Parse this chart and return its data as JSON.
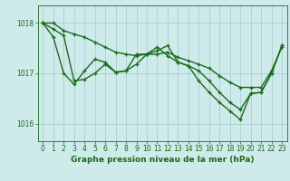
{
  "title": "Graphe pression niveau de la mer (hPa)",
  "background_color": "#ceeaea",
  "grid_color": "#aacfcf",
  "line_color": "#1a6b1a",
  "xlim": [
    -0.5,
    23.5
  ],
  "ylim": [
    1015.65,
    1018.35
  ],
  "yticks": [
    1016,
    1017,
    1018
  ],
  "xticks": [
    0,
    1,
    2,
    3,
    4,
    5,
    6,
    7,
    8,
    9,
    10,
    11,
    12,
    13,
    14,
    15,
    16,
    17,
    18,
    19,
    20,
    21,
    22,
    23
  ],
  "line1_x": [
    0,
    1,
    2,
    3,
    4,
    5,
    6,
    7,
    8,
    9,
    10,
    11,
    12,
    13,
    14,
    15,
    16,
    17,
    18,
    19,
    20,
    21,
    22,
    23
  ],
  "line1_y": [
    1018.0,
    1018.0,
    1017.85,
    1017.78,
    1017.72,
    1017.62,
    1017.52,
    1017.42,
    1017.38,
    1017.35,
    1017.38,
    1017.38,
    1017.42,
    1017.32,
    1017.25,
    1017.18,
    1017.1,
    1016.95,
    1016.82,
    1016.72,
    1016.72,
    1016.72,
    1017.05,
    1017.52
  ],
  "line2_x": [
    0,
    1,
    2,
    3,
    4,
    5,
    6,
    7,
    8,
    9,
    10,
    11,
    12,
    13,
    14,
    15,
    16,
    17,
    18,
    19,
    20,
    21,
    22,
    23
  ],
  "line2_y": [
    1018.0,
    1017.88,
    1017.75,
    1016.85,
    1016.88,
    1017.0,
    1017.18,
    1017.02,
    1017.05,
    1017.38,
    1017.38,
    1017.45,
    1017.55,
    1017.22,
    1017.15,
    1017.05,
    1016.85,
    1016.62,
    1016.42,
    1016.28,
    1016.6,
    1016.62,
    1017.0,
    1017.55
  ],
  "line3_x": [
    0,
    1,
    2,
    3,
    4,
    5,
    6,
    7,
    8,
    9,
    10,
    11,
    12,
    13,
    14,
    15,
    16,
    17,
    18,
    19,
    20,
    21,
    22,
    23
  ],
  "line3_y": [
    1018.0,
    1017.72,
    1017.0,
    1016.78,
    1017.05,
    1017.28,
    1017.22,
    1017.02,
    1017.05,
    1017.18,
    1017.38,
    1017.52,
    1017.35,
    1017.22,
    1017.15,
    1016.85,
    1016.62,
    1016.42,
    1016.25,
    1016.08,
    1016.6,
    1016.62,
    1017.0,
    1017.55
  ],
  "tick_fontsize": 5.5,
  "xlabel_fontsize": 6.5
}
